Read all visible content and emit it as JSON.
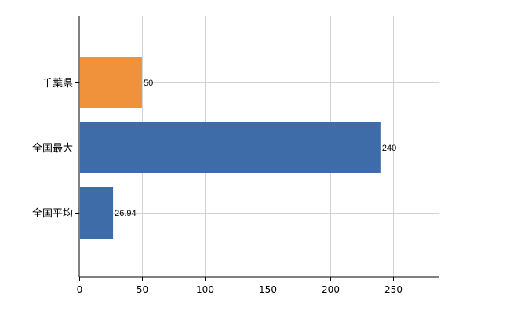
{
  "chart_data": {
    "type": "bar",
    "orientation": "horizontal",
    "categories": [
      "千葉県",
      "全国最大",
      "全国平均"
    ],
    "values": [
      50,
      240,
      26.94
    ],
    "value_labels": [
      "50",
      "240",
      "26.94"
    ],
    "bar_colors": [
      "#f0923b",
      "#3d6ca8",
      "#3d6ca8"
    ],
    "xlim": [
      0,
      287
    ],
    "x_ticks": [
      0,
      50,
      100,
      150,
      200,
      250
    ],
    "x_tick_labels": [
      "0",
      "50",
      "100",
      "150",
      "200",
      "250"
    ],
    "grid": true,
    "title": "",
    "xlabel": "",
    "ylabel": ""
  }
}
